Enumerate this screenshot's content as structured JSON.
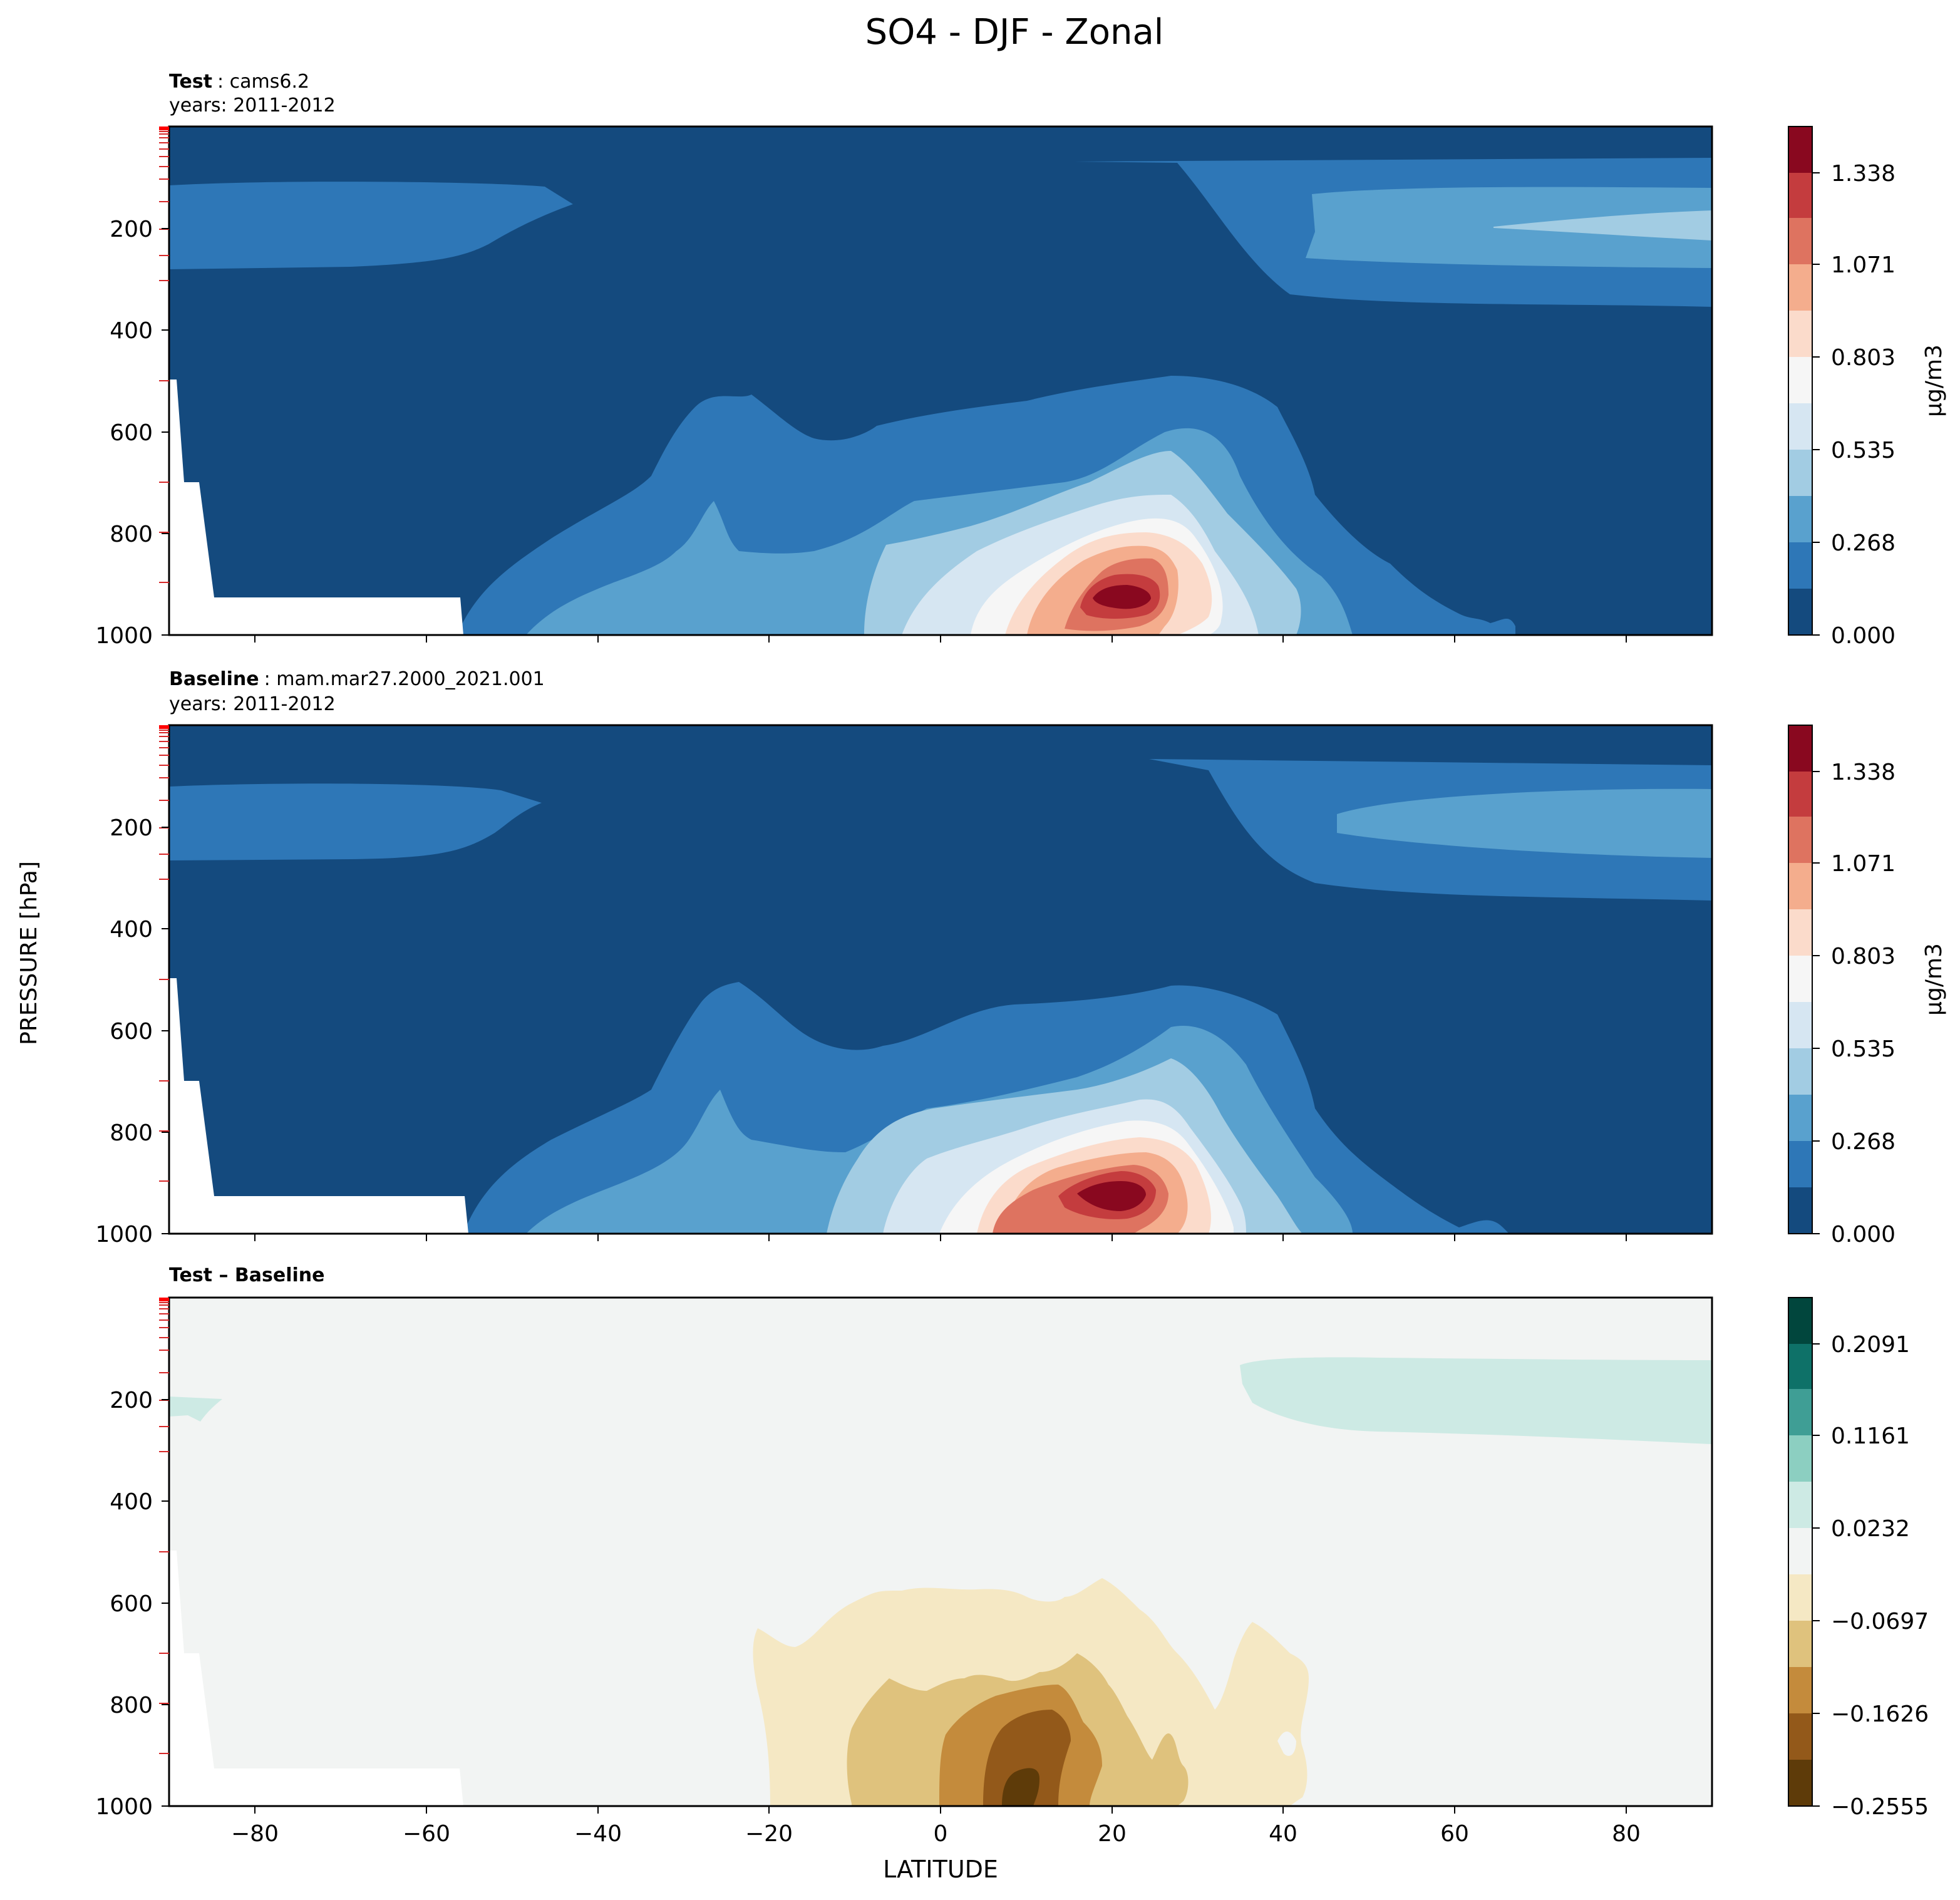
{
  "suptitle": "SO4 - DJF - Zonal",
  "ylabel": "PRESSURE [hPa]",
  "xlabel": "LATITUDE",
  "chart_data": [
    {
      "type": "contour",
      "panel": "test",
      "title_bold": "Test",
      "title_rest": ": cams6.2",
      "years": "years: 2011-2012",
      "xlim": [
        -90,
        90
      ],
      "ylim": [
        1000,
        0
      ],
      "y_axis_reversed": true,
      "yticks": [
        "200",
        "400",
        "600",
        "800",
        "1000"
      ],
      "xticks": [
        -80,
        -60,
        -40,
        -20,
        0,
        20,
        40,
        60,
        80
      ],
      "xtick_labels_shown": false,
      "colormap": "RdBu_r",
      "colorbar_label": "μg/m3",
      "colorbar_ticks": [
        "0.000",
        "0.268",
        "0.535",
        "0.803",
        "1.071",
        "1.338"
      ],
      "levels": [
        0.0,
        0.134,
        0.268,
        0.401,
        0.535,
        0.669,
        0.803,
        0.937,
        1.071,
        1.204,
        1.338,
        1.472
      ],
      "colors": [
        "#144a7e",
        "#2e77b7",
        "#59a1ce",
        "#a2cce3",
        "#d6e6f2",
        "#f6f6f6",
        "#fbdbcb",
        "#f4ad8d",
        "#de7360",
        "#c43c3e",
        "#89081f"
      ],
      "features": {
        "maximum": {
          "lat": 20,
          "p": 925
        },
        "surface_mask_below_p": 920
      }
    },
    {
      "type": "contour",
      "panel": "baseline",
      "title_bold": "Baseline",
      "title_rest": ": mam.mar27.2000_2021.001",
      "years": "years: 2011-2012",
      "xlim": [
        -90,
        90
      ],
      "ylim": [
        1000,
        0
      ],
      "y_axis_reversed": true,
      "yticks": [
        "200",
        "400",
        "600",
        "800",
        "1000"
      ],
      "xticks": [
        -80,
        -60,
        -40,
        -20,
        0,
        20,
        40,
        60,
        80
      ],
      "xtick_labels_shown": false,
      "colormap": "RdBu_r",
      "colorbar_label": "μg/m3",
      "colorbar_ticks": [
        "0.000",
        "0.268",
        "0.535",
        "0.803",
        "1.071",
        "1.338"
      ],
      "levels": [
        0.0,
        0.134,
        0.268,
        0.401,
        0.535,
        0.669,
        0.803,
        0.937,
        1.071,
        1.204,
        1.338,
        1.472
      ],
      "colors": [
        "#144a7e",
        "#2e77b7",
        "#59a1ce",
        "#a2cce3",
        "#d6e6f2",
        "#f6f6f6",
        "#fbdbcb",
        "#f4ad8d",
        "#de7360",
        "#c43c3e",
        "#89081f"
      ],
      "features": {
        "maximum": {
          "lat": 20,
          "p": 915
        },
        "surface_mask_below_p": 920
      }
    },
    {
      "type": "contour",
      "panel": "difference",
      "title_bold": "Test – Baseline",
      "xlim": [
        -90,
        90
      ],
      "ylim": [
        1000,
        0
      ],
      "y_axis_reversed": true,
      "yticks": [
        "200",
        "400",
        "600",
        "800",
        "1000"
      ],
      "xticks": [
        -80,
        -60,
        -40,
        -20,
        0,
        20,
        40,
        60,
        80
      ],
      "xtick_labels": [
        "−80",
        "−60",
        "−40",
        "−20",
        "0",
        "20",
        "40",
        "60",
        "80"
      ],
      "colormap": "BrBG",
      "colorbar_ticks": [
        "−0.2555",
        "−0.1626",
        "−0.0697",
        "0.0232",
        "0.1161",
        "0.2091"
      ],
      "levels": [
        -0.2555,
        -0.209,
        -0.1626,
        -0.1161,
        -0.0697,
        -0.0232,
        0.0232,
        0.0697,
        0.1161,
        0.1626,
        0.2091,
        0.2555
      ],
      "colors": [
        "#5e3b09",
        "#93591a",
        "#c48b3c",
        "#dfc27d",
        "#f5e8c4",
        "#f2f4f3",
        "#cdeae4",
        "#8ccfc1",
        "#3f9e95",
        "#0e7168",
        "#01463d"
      ],
      "features": {
        "minimum": {
          "lat": 10,
          "p": 950
        },
        "positive_band_north": {
          "lat_range": [
            35,
            90
          ],
          "p_range": [
            130,
            300
          ]
        }
      }
    }
  ]
}
